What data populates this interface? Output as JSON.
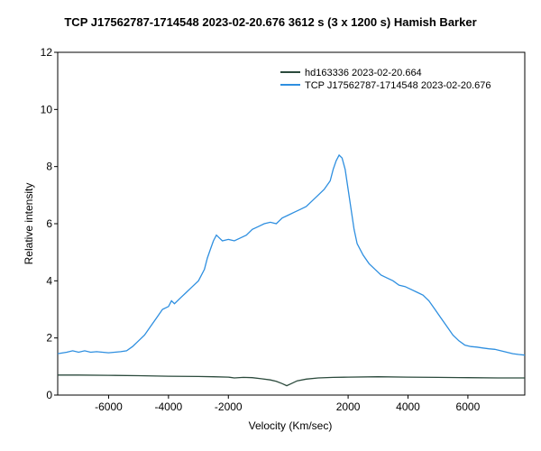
{
  "chart_data": {
    "type": "line",
    "title": "TCP J17562787-1714548   2023-02-20.676   3612 s (3 x 1200 s)   Hamish Barker",
    "xlabel": "Velocity (Km/sec)",
    "ylabel": "Relative intensity",
    "xlim": [
      -7700,
      7900
    ],
    "ylim": [
      0,
      12
    ],
    "xticks": [
      -6000,
      -4000,
      -2000,
      2000,
      4000,
      6000
    ],
    "yticks": [
      0,
      2,
      4,
      6,
      8,
      10,
      12
    ],
    "grid": false,
    "legend_position": "top-right",
    "series": [
      {
        "name": "hd163336  2023-02-20.664",
        "color": "#2b4a3c",
        "points": [
          [
            -7700,
            0.7
          ],
          [
            -7000,
            0.7
          ],
          [
            -6000,
            0.69
          ],
          [
            -5000,
            0.68
          ],
          [
            -4000,
            0.66
          ],
          [
            -3000,
            0.65
          ],
          [
            -2500,
            0.64
          ],
          [
            -2000,
            0.63
          ],
          [
            -1800,
            0.6
          ],
          [
            -1500,
            0.62
          ],
          [
            -1200,
            0.61
          ],
          [
            -900,
            0.57
          ],
          [
            -600,
            0.53
          ],
          [
            -400,
            0.48
          ],
          [
            -200,
            0.4
          ],
          [
            -50,
            0.33
          ],
          [
            100,
            0.4
          ],
          [
            300,
            0.5
          ],
          [
            600,
            0.56
          ],
          [
            1000,
            0.6
          ],
          [
            1500,
            0.62
          ],
          [
            2000,
            0.63
          ],
          [
            3000,
            0.64
          ],
          [
            4000,
            0.63
          ],
          [
            5000,
            0.62
          ],
          [
            6000,
            0.61
          ],
          [
            7000,
            0.6
          ],
          [
            7900,
            0.6
          ]
        ]
      },
      {
        "name": "TCP J17562787-1714548  2023-02-20.676",
        "color": "#2e8fe0",
        "points": [
          [
            -7700,
            1.45
          ],
          [
            -7400,
            1.5
          ],
          [
            -7200,
            1.55
          ],
          [
            -7000,
            1.5
          ],
          [
            -6800,
            1.55
          ],
          [
            -6600,
            1.5
          ],
          [
            -6400,
            1.52
          ],
          [
            -6200,
            1.5
          ],
          [
            -6000,
            1.48
          ],
          [
            -5800,
            1.5
          ],
          [
            -5600,
            1.52
          ],
          [
            -5400,
            1.55
          ],
          [
            -5200,
            1.7
          ],
          [
            -5000,
            1.9
          ],
          [
            -4800,
            2.1
          ],
          [
            -4600,
            2.4
          ],
          [
            -4400,
            2.7
          ],
          [
            -4200,
            3.0
          ],
          [
            -4000,
            3.1
          ],
          [
            -3900,
            3.3
          ],
          [
            -3800,
            3.2
          ],
          [
            -3600,
            3.4
          ],
          [
            -3400,
            3.6
          ],
          [
            -3200,
            3.8
          ],
          [
            -3000,
            4.0
          ],
          [
            -2800,
            4.4
          ],
          [
            -2700,
            4.8
          ],
          [
            -2600,
            5.1
          ],
          [
            -2500,
            5.4
          ],
          [
            -2400,
            5.6
          ],
          [
            -2300,
            5.5
          ],
          [
            -2200,
            5.4
          ],
          [
            -2000,
            5.45
          ],
          [
            -1800,
            5.4
          ],
          [
            -1600,
            5.5
          ],
          [
            -1400,
            5.6
          ],
          [
            -1200,
            5.8
          ],
          [
            -1000,
            5.9
          ],
          [
            -800,
            6.0
          ],
          [
            -600,
            6.05
          ],
          [
            -400,
            6.0
          ],
          [
            -200,
            6.2
          ],
          [
            0,
            6.3
          ],
          [
            200,
            6.4
          ],
          [
            400,
            6.5
          ],
          [
            600,
            6.6
          ],
          [
            800,
            6.8
          ],
          [
            1000,
            7.0
          ],
          [
            1200,
            7.2
          ],
          [
            1400,
            7.5
          ],
          [
            1500,
            7.9
          ],
          [
            1600,
            8.2
          ],
          [
            1700,
            8.4
          ],
          [
            1800,
            8.3
          ],
          [
            1900,
            7.9
          ],
          [
            2000,
            7.2
          ],
          [
            2100,
            6.5
          ],
          [
            2200,
            5.8
          ],
          [
            2300,
            5.3
          ],
          [
            2500,
            4.9
          ],
          [
            2700,
            4.6
          ],
          [
            2900,
            4.4
          ],
          [
            3100,
            4.2
          ],
          [
            3300,
            4.1
          ],
          [
            3500,
            4.0
          ],
          [
            3700,
            3.85
          ],
          [
            3900,
            3.8
          ],
          [
            4100,
            3.7
          ],
          [
            4300,
            3.6
          ],
          [
            4500,
            3.5
          ],
          [
            4700,
            3.3
          ],
          [
            4900,
            3.0
          ],
          [
            5100,
            2.7
          ],
          [
            5300,
            2.4
          ],
          [
            5500,
            2.1
          ],
          [
            5700,
            1.9
          ],
          [
            5900,
            1.75
          ],
          [
            6100,
            1.7
          ],
          [
            6300,
            1.68
          ],
          [
            6500,
            1.65
          ],
          [
            6700,
            1.62
          ],
          [
            6900,
            1.6
          ],
          [
            7100,
            1.55
          ],
          [
            7300,
            1.5
          ],
          [
            7500,
            1.45
          ],
          [
            7700,
            1.42
          ],
          [
            7900,
            1.4
          ]
        ]
      }
    ]
  }
}
